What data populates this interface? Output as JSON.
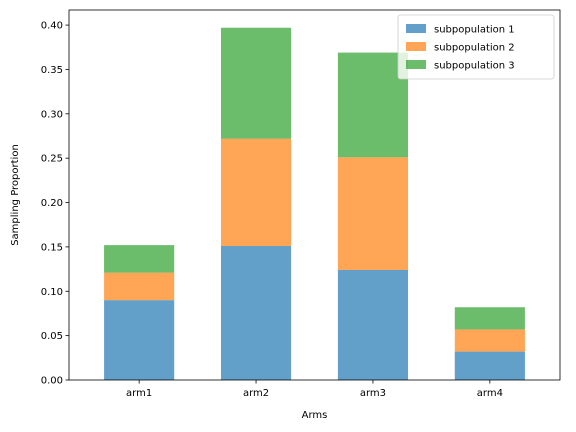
{
  "chart_data": {
    "type": "bar",
    "stacked": true,
    "categories": [
      "arm1",
      "arm2",
      "arm3",
      "arm4"
    ],
    "series": [
      {
        "name": "subpopulation 1",
        "color": "#1f77b4",
        "values": [
          0.09,
          0.151,
          0.124,
          0.032
        ]
      },
      {
        "name": "subpopulation 2",
        "color": "#ff7f0e",
        "values": [
          0.031,
          0.121,
          0.127,
          0.025
        ]
      },
      {
        "name": "subpopulation 3",
        "color": "#2ca02c",
        "values": [
          0.031,
          0.125,
          0.118,
          0.025
        ]
      }
    ],
    "xlabel": "Arms",
    "ylabel": "Sampling Proportion",
    "ylim": [
      0,
      0.417
    ],
    "yticks": [
      0.0,
      0.05,
      0.1,
      0.15,
      0.2,
      0.25,
      0.3,
      0.35,
      0.4
    ],
    "ytick_labels": [
      "0.00",
      "0.05",
      "0.10",
      "0.15",
      "0.20",
      "0.25",
      "0.30",
      "0.35",
      "0.40"
    ],
    "bar_opacity": 0.7,
    "grid": false,
    "legend_position": "top-right"
  }
}
